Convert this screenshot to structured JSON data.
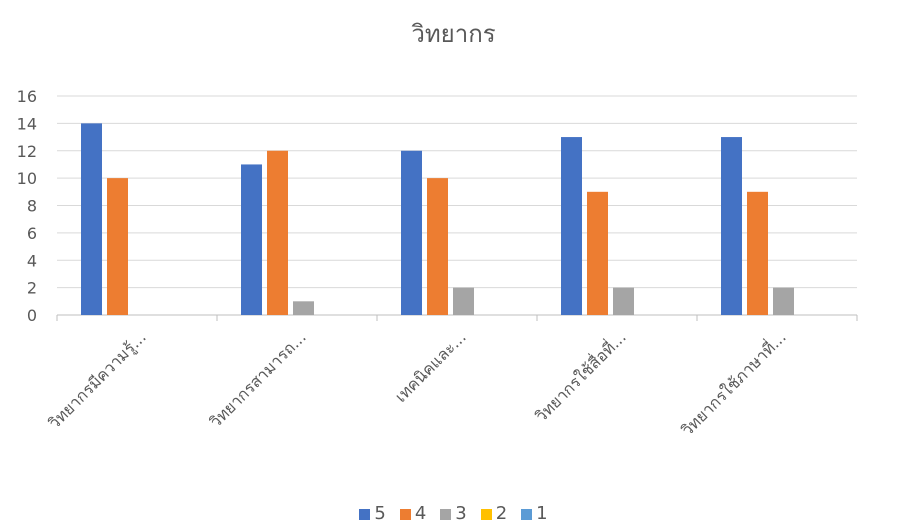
{
  "chart_data": {
    "type": "bar",
    "title": "วิทยากร",
    "categories": [
      "วิทยากรมีความรู้...",
      "วิทยากรสามารถ...",
      "เทคนิคและ...",
      "วิทยากรใช้สื่อที่...",
      "วิทยากรใช้ภาษาที่..."
    ],
    "series": [
      {
        "name": "5",
        "color": "#4472C4",
        "values": [
          14,
          11,
          12,
          13,
          13
        ]
      },
      {
        "name": "4",
        "color": "#ED7D31",
        "values": [
          10,
          12,
          10,
          9,
          9
        ]
      },
      {
        "name": "3",
        "color": "#A5A5A5",
        "values": [
          0,
          1,
          2,
          2,
          2
        ]
      },
      {
        "name": "2",
        "color": "#FFC000",
        "values": [
          0,
          0,
          0,
          0,
          0
        ]
      },
      {
        "name": "1",
        "color": "#5B9BD5",
        "values": [
          0,
          0,
          0,
          0,
          0
        ]
      }
    ],
    "y_ticks": [
      "0",
      "2",
      "4",
      "6",
      "8",
      "10",
      "12",
      "14",
      "16"
    ],
    "ylim": [
      0,
      16
    ],
    "grid": true,
    "legend_position": "bottom"
  }
}
